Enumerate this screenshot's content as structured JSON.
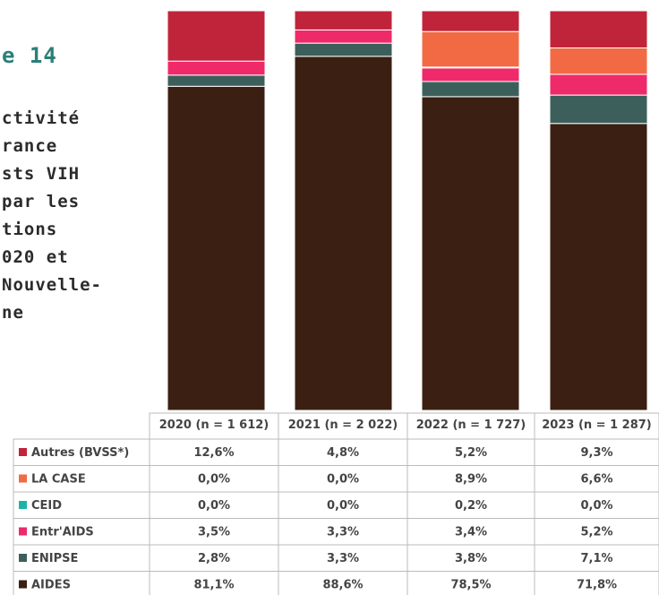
{
  "chart_data": {
    "type": "bar",
    "stacked": true,
    "title": "e 14",
    "text_lines": [
      "ctivité",
      "rance",
      "sts VIH",
      "par les",
      "tions",
      "020 et",
      "Nouvelle-",
      "ne"
    ],
    "categories": [
      "2020 (n = 1 612)",
      "2021 (n = 2 022)",
      "2022 (n = 1 727)",
      "2023 (n = 1 287)"
    ],
    "ylim": [
      0,
      100
    ],
    "series": [
      {
        "name": "Autres (BVSS*)",
        "color": "#c0243a",
        "values": [
          12.6,
          4.8,
          5.2,
          9.3
        ],
        "value_labels": [
          "12,6%",
          "4,8%",
          "5,2%",
          "9,3%"
        ]
      },
      {
        "name": "LA CASE",
        "color": "#f26a44",
        "values": [
          0,
          0,
          8.9,
          6.6
        ],
        "value_labels": [
          "0,0%",
          "0,0%",
          "8,9%",
          "6,6%"
        ]
      },
      {
        "name": "CEID",
        "color": "#1bb5a5",
        "values": [
          0,
          0,
          0.2,
          0
        ],
        "value_labels": [
          "0,0%",
          "0,0%",
          "0,2%",
          "0,0%"
        ]
      },
      {
        "name": "Entr'AIDS",
        "color": "#ee2a6b",
        "values": [
          3.5,
          3.3,
          3.4,
          5.2
        ],
        "value_labels": [
          "3,5%",
          "3,3%",
          "3,4%",
          "5,2%"
        ]
      },
      {
        "name": "ENIPSE",
        "color": "#3d5f5b",
        "values": [
          2.8,
          3.3,
          3.8,
          7.1
        ],
        "value_labels": [
          "2,8%",
          "3,3%",
          "3,8%",
          "7,1%"
        ]
      },
      {
        "name": "AIDES",
        "color": "#3a1f12",
        "values": [
          81.1,
          88.6,
          78.5,
          71.8
        ],
        "value_labels": [
          "81,1%",
          "88,6%",
          "78,5%",
          "71,8%"
        ]
      }
    ]
  }
}
